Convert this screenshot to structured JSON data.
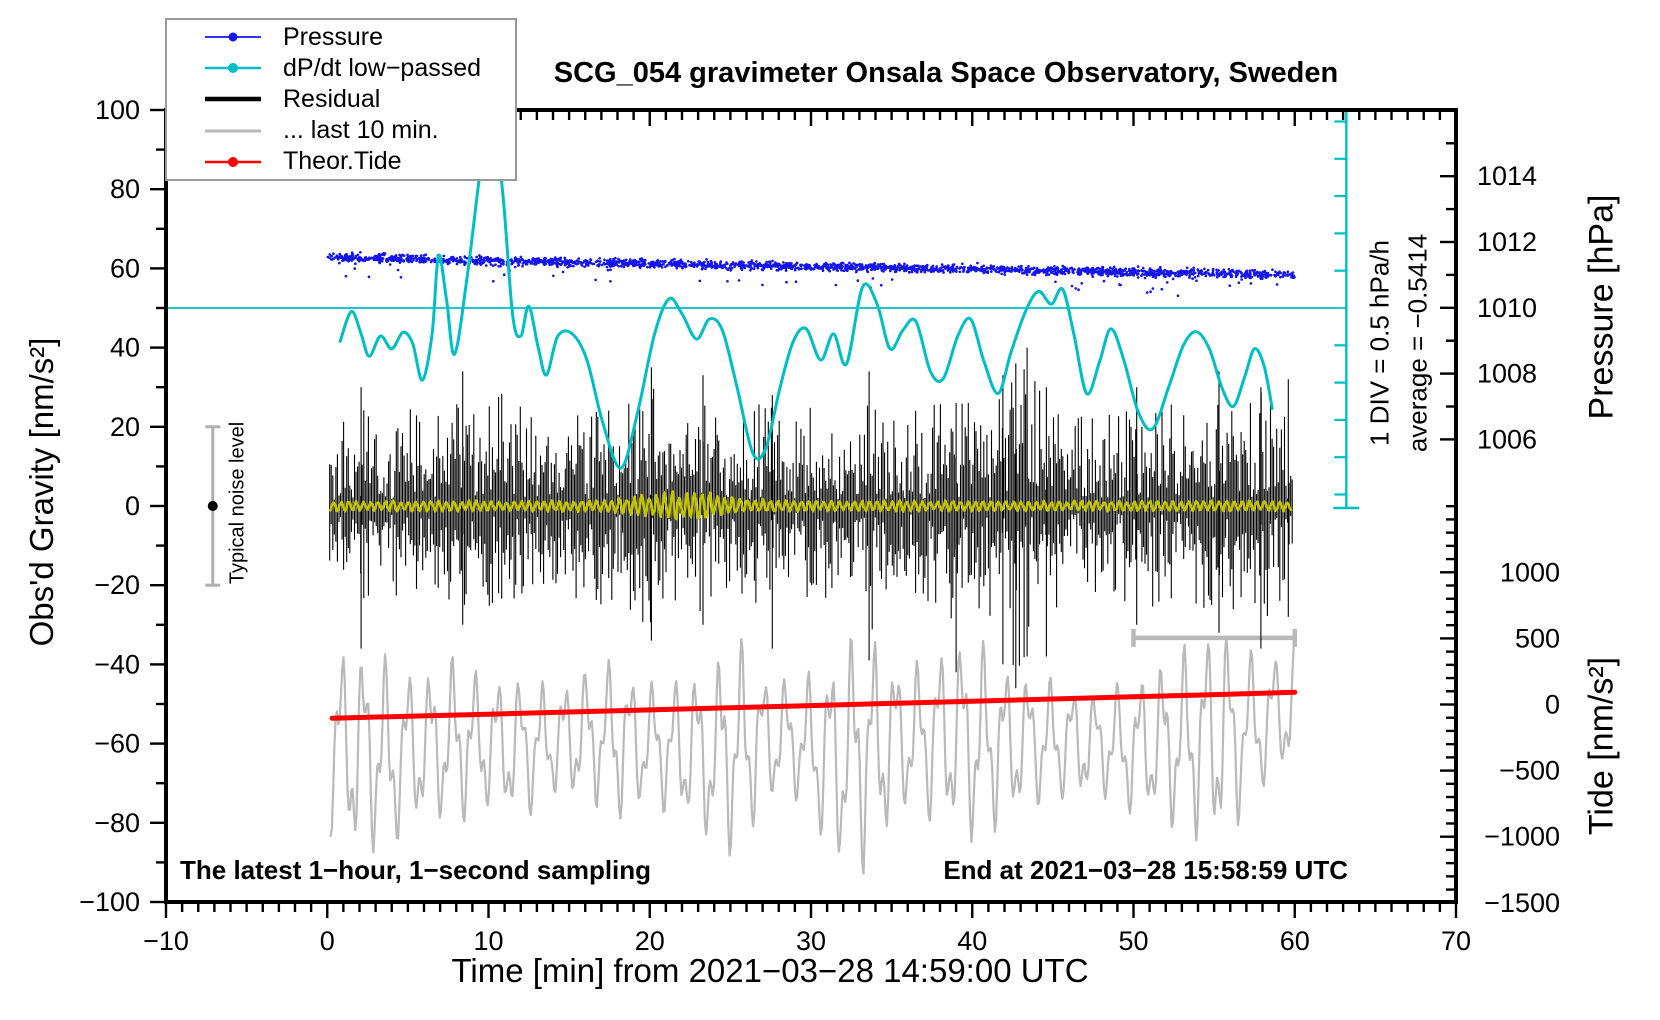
{
  "title": "SCG_054 gravimeter Onsala Space Observatory, Sweden",
  "annotations": {
    "sampling_note": "The latest 1−hour, 1−second sampling",
    "end_note": "End at 2021−03−28 15:58:59 UTC",
    "div_note": "1 DIV = 0.5 hPa/h",
    "average_note": "average = −0.5414",
    "noise_label": "Typical noise level"
  },
  "legend": {
    "items": [
      {
        "label": "Pressure",
        "color": "#1414ee",
        "sample": "dot-line"
      },
      {
        "label": "dP/dt low−passed",
        "color": "#00bfc4",
        "sample": "dot-line"
      },
      {
        "label": "Residual",
        "color": "#000000",
        "sample": "thick-line"
      },
      {
        "label": "... last 10 min.",
        "color": "#b9b9b9",
        "sample": "line"
      },
      {
        "label": "Theor.Tide",
        "color": "#ff0000",
        "sample": "dot-line"
      }
    ]
  },
  "chart_data": {
    "type": "line",
    "description": "Superconducting gravimeter 1-hour monitoring plot: pressure dots, low-passed dP/dt, gravity residual noise, stretched last-10-min residual, theoretical tide",
    "axes": {
      "x": {
        "title": "Time [min] from 2021−03−28 14:59:00 UTC",
        "min": -10,
        "max": 70,
        "major": 10,
        "minor": 1,
        "majors": [
          [
            -10,
            "−10"
          ],
          [
            0,
            "0"
          ],
          [
            10,
            "10"
          ],
          [
            20,
            "20"
          ],
          [
            30,
            "30"
          ],
          [
            40,
            "40"
          ],
          [
            50,
            "50"
          ],
          [
            60,
            "60"
          ],
          [
            70,
            "70"
          ]
        ]
      },
      "y_left": {
        "title": "Obs'd Gravity [nm/s²]",
        "min": -100,
        "max": 100,
        "major": 20,
        "minor": 10,
        "majors": [
          [
            -100,
            "−100"
          ],
          [
            -80,
            "−80"
          ],
          [
            -60,
            "−60"
          ],
          [
            -40,
            "−40"
          ],
          [
            -20,
            "−20"
          ],
          [
            0,
            "0"
          ],
          [
            20,
            "20"
          ],
          [
            40,
            "40"
          ],
          [
            60,
            "60"
          ],
          [
            80,
            "80"
          ],
          [
            100,
            "100"
          ]
        ]
      },
      "y_right_pressure": {
        "title": "Pressure [hPa]",
        "minor": 1,
        "minor_from": 1006,
        "minor_to": 1015,
        "majors": [
          [
            1006,
            "1006"
          ],
          [
            1008,
            "1008"
          ],
          [
            1010,
            "1010"
          ],
          [
            1012,
            "1012"
          ],
          [
            1014,
            "1014"
          ]
        ]
      },
      "y_right_tide": {
        "title": "Tide [nm/s²]",
        "minor": 100,
        "minor_from": -1500,
        "minor_to": 1500,
        "majors": [
          [
            -1500,
            "−1500"
          ],
          [
            -1000,
            "−1000"
          ],
          [
            -500,
            "−500"
          ],
          [
            0,
            "0"
          ],
          [
            500,
            "500"
          ],
          [
            1000,
            "1000"
          ]
        ]
      }
    },
    "series": {
      "pressure": {
        "type": "scatter",
        "color": "#1414ee",
        "unit": "hPa",
        "t_range": [
          0,
          60
        ],
        "trend_start_hpa": 1011.52,
        "trend_end_hpa": 1011.0,
        "jitter_sd_hpa": 0.07,
        "n_dots": 2300,
        "outlier_every": 50,
        "seed": 77
      },
      "dpdt_lowpassed": {
        "type": "line",
        "color": "#00bfc4",
        "unit": "hPa/h",
        "zero_line_at_gravity": 50,
        "div_value_hpa_per_h": 0.5,
        "scale_bar_t": 63.2,
        "points": [
          [
            0.8,
            -0.45
          ],
          [
            1.5,
            -0.05
          ],
          [
            2.1,
            -0.35
          ],
          [
            2.6,
            -0.65
          ],
          [
            3.3,
            -0.38
          ],
          [
            4.0,
            -0.55
          ],
          [
            4.7,
            -0.33
          ],
          [
            5.3,
            -0.48
          ],
          [
            5.9,
            -0.97
          ],
          [
            6.5,
            -0.35
          ],
          [
            6.9,
            0.7
          ],
          [
            7.4,
            0.1
          ],
          [
            7.9,
            -0.62
          ],
          [
            8.7,
            0.45
          ],
          [
            9.5,
            1.85
          ],
          [
            10.2,
            2.72
          ],
          [
            10.9,
            1.5
          ],
          [
            11.5,
            -0.1
          ],
          [
            12.0,
            -0.38
          ],
          [
            12.5,
            0.02
          ],
          [
            13.1,
            -0.55
          ],
          [
            13.6,
            -0.9
          ],
          [
            14.3,
            -0.38
          ],
          [
            15.2,
            -0.35
          ],
          [
            16.1,
            -0.7
          ],
          [
            17.1,
            -1.55
          ],
          [
            18.2,
            -2.15
          ],
          [
            19.2,
            -1.45
          ],
          [
            20.3,
            -0.35
          ],
          [
            21.2,
            0.12
          ],
          [
            22.0,
            -0.08
          ],
          [
            22.9,
            -0.42
          ],
          [
            23.7,
            -0.15
          ],
          [
            24.5,
            -0.3
          ],
          [
            25.4,
            -1.05
          ],
          [
            26.4,
            -1.95
          ],
          [
            27.2,
            -1.88
          ],
          [
            28.1,
            -1.05
          ],
          [
            28.9,
            -0.45
          ],
          [
            29.7,
            -0.28
          ],
          [
            30.6,
            -0.7
          ],
          [
            31.4,
            -0.35
          ],
          [
            32.2,
            -0.75
          ],
          [
            33.2,
            0.28
          ],
          [
            34.1,
            0.05
          ],
          [
            34.9,
            -0.55
          ],
          [
            35.7,
            -0.3
          ],
          [
            36.5,
            -0.18
          ],
          [
            37.4,
            -0.85
          ],
          [
            38.2,
            -0.95
          ],
          [
            39.1,
            -0.38
          ],
          [
            39.9,
            -0.15
          ],
          [
            40.7,
            -0.7
          ],
          [
            41.6,
            -1.15
          ],
          [
            42.4,
            -0.6
          ],
          [
            43.3,
            -0.05
          ],
          [
            44.1,
            0.22
          ],
          [
            44.9,
            0.05
          ],
          [
            45.6,
            0.25
          ],
          [
            46.3,
            -0.35
          ],
          [
            47.1,
            -1.15
          ],
          [
            47.9,
            -0.72
          ],
          [
            48.6,
            -0.28
          ],
          [
            49.4,
            -0.7
          ],
          [
            50.3,
            -1.4
          ],
          [
            51.2,
            -1.62
          ],
          [
            52.2,
            -1.05
          ],
          [
            53.1,
            -0.5
          ],
          [
            53.9,
            -0.32
          ],
          [
            54.7,
            -0.55
          ],
          [
            55.5,
            -1.08
          ],
          [
            56.2,
            -1.32
          ],
          [
            56.9,
            -0.92
          ],
          [
            57.5,
            -0.55
          ],
          [
            58.1,
            -0.78
          ],
          [
            58.6,
            -1.35
          ]
        ]
      },
      "residual": {
        "type": "noise",
        "color": "#000000",
        "center": 0,
        "seed": 1234,
        "envelope": [
          [
            0,
            16
          ],
          [
            1,
            22
          ],
          [
            2,
            30
          ],
          [
            2.6,
            22
          ],
          [
            3.5,
            20
          ],
          [
            5,
            25
          ],
          [
            6,
            21
          ],
          [
            7,
            23
          ],
          [
            8,
            27
          ],
          [
            9,
            23
          ],
          [
            10,
            25
          ],
          [
            11,
            29
          ],
          [
            12,
            25
          ],
          [
            13,
            21
          ],
          [
            14,
            23
          ],
          [
            15,
            25
          ],
          [
            16,
            21
          ],
          [
            17,
            25
          ],
          [
            18,
            23
          ],
          [
            19,
            27
          ],
          [
            20,
            31
          ],
          [
            21,
            25
          ],
          [
            22,
            23
          ],
          [
            23,
            27
          ],
          [
            24,
            23
          ],
          [
            25,
            25
          ],
          [
            26,
            21
          ],
          [
            27,
            27
          ],
          [
            28,
            23
          ],
          [
            29,
            21
          ],
          [
            30,
            25
          ],
          [
            31,
            23
          ],
          [
            32,
            21
          ],
          [
            33,
            25
          ],
          [
            33.6,
            36
          ],
          [
            34.2,
            25
          ],
          [
            35,
            21
          ],
          [
            36,
            25
          ],
          [
            37,
            23
          ],
          [
            38,
            27
          ],
          [
            39,
            29
          ],
          [
            40,
            25
          ],
          [
            41,
            27
          ],
          [
            42,
            34
          ],
          [
            42.7,
            42
          ],
          [
            43.5,
            36
          ],
          [
            44.2,
            32
          ],
          [
            45,
            27
          ],
          [
            46,
            21
          ],
          [
            47,
            23
          ],
          [
            48,
            21
          ],
          [
            49,
            25
          ],
          [
            50,
            23
          ],
          [
            51,
            25
          ],
          [
            52,
            27
          ],
          [
            53,
            23
          ],
          [
            54,
            25
          ],
          [
            55,
            27
          ],
          [
            56,
            29
          ],
          [
            57,
            25
          ],
          [
            58,
            29
          ],
          [
            59,
            25
          ],
          [
            60,
            21
          ]
        ],
        "spikes": [
          [
            2.1,
            -36,
            30
          ],
          [
            8.4,
            -30,
            34
          ],
          [
            20.1,
            -34,
            35
          ],
          [
            23.3,
            -30,
            33
          ],
          [
            27.6,
            -36,
            28
          ],
          [
            33.6,
            -39,
            34
          ],
          [
            39.0,
            -42,
            26
          ],
          [
            41.9,
            -40,
            33
          ],
          [
            42.7,
            -46,
            36
          ],
          [
            43.4,
            -38,
            40
          ],
          [
            44.6,
            -38,
            30
          ],
          [
            50.2,
            -30,
            30
          ],
          [
            55.3,
            -32,
            34
          ],
          [
            57.9,
            -36,
            30
          ],
          [
            59.6,
            -28,
            32
          ]
        ]
      },
      "residual_lowpassed": {
        "type": "line",
        "color": "#c3c300",
        "center": 0,
        "base_amp": 1.3,
        "burst_center_t": 22,
        "burst_extra_amp": 2.4,
        "burst_width": 3.4,
        "period_min": 0.47,
        "seed": 9
      },
      "last10_stretched": {
        "type": "line",
        "color": "#b9b9b9",
        "seed": 555,
        "source_minutes": [
          50,
          60
        ],
        "periods_min": [
          1.38,
          0.52
        ],
        "center": [
          [
            0,
            -60
          ],
          [
            4,
            -63
          ],
          [
            8,
            -59
          ],
          [
            12,
            -61
          ],
          [
            16,
            -58
          ],
          [
            20,
            -60
          ],
          [
            24,
            -63
          ],
          [
            28,
            -58
          ],
          [
            32,
            -64
          ],
          [
            34,
            -60
          ],
          [
            38,
            -58
          ],
          [
            42,
            -60
          ],
          [
            46,
            -59
          ],
          [
            50,
            -61
          ],
          [
            54,
            -59
          ],
          [
            57,
            -57
          ],
          [
            60,
            -50
          ]
        ],
        "amp": [
          [
            0,
            22
          ],
          [
            2,
            27
          ],
          [
            4,
            23
          ],
          [
            6,
            18
          ],
          [
            8,
            21
          ],
          [
            10,
            16
          ],
          [
            12,
            18
          ],
          [
            14,
            14
          ],
          [
            16,
            16
          ],
          [
            18,
            20
          ],
          [
            20,
            15
          ],
          [
            22,
            18
          ],
          [
            24,
            23
          ],
          [
            25.5,
            27
          ],
          [
            27,
            18
          ],
          [
            29,
            14
          ],
          [
            31,
            24
          ],
          [
            33,
            31
          ],
          [
            34.5,
            24
          ],
          [
            36,
            18
          ],
          [
            38,
            22
          ],
          [
            40,
            26
          ],
          [
            42,
            20
          ],
          [
            44,
            16
          ],
          [
            46,
            14
          ],
          [
            48,
            13
          ],
          [
            50,
            17
          ],
          [
            52,
            21
          ],
          [
            54,
            25
          ],
          [
            55.5,
            28
          ],
          [
            57,
            20
          ],
          [
            58.5,
            15
          ],
          [
            60,
            17
          ]
        ]
      },
      "theor_tide": {
        "type": "line",
        "color": "#ff0000",
        "unit": "nm/s²",
        "points": [
          [
            0.3,
            -104
          ],
          [
            10,
            -73
          ],
          [
            20,
            -41
          ],
          [
            30,
            -8
          ],
          [
            40,
            25
          ],
          [
            50,
            58
          ],
          [
            60,
            92
          ]
        ]
      },
      "last10_marker": {
        "t_range": [
          50,
          60
        ],
        "gravity": -33.3,
        "color": "#b9b9b9"
      },
      "noise_bar": {
        "t": -7.1,
        "gravity_range": [
          -20,
          20
        ],
        "dot_at": 0,
        "color": "#b0b0b0"
      }
    }
  }
}
